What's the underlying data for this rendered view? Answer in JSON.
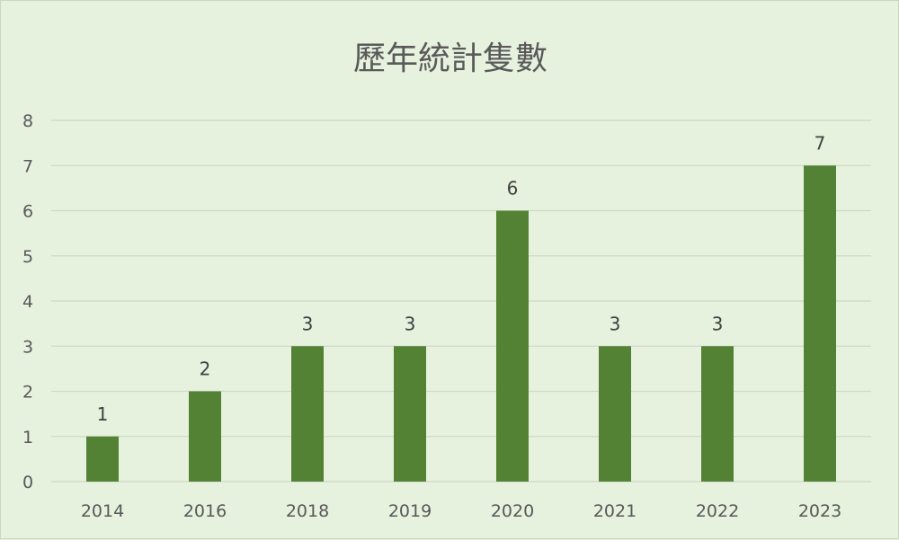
{
  "chart_data": {
    "type": "bar",
    "title": "歷年統計隻數",
    "categories": [
      "2014",
      "2016",
      "2018",
      "2019",
      "2020",
      "2021",
      "2022",
      "2023"
    ],
    "values": [
      1,
      2,
      3,
      3,
      6,
      3,
      3,
      7
    ],
    "ylim": [
      0,
      8
    ],
    "yticks": [
      0,
      1,
      2,
      3,
      4,
      5,
      6,
      7,
      8
    ],
    "xlabel": "",
    "ylabel": "",
    "grid": true,
    "legend": "none",
    "data_labels": true,
    "bar_color": "#548235",
    "background_color": "#e6f1de"
  }
}
